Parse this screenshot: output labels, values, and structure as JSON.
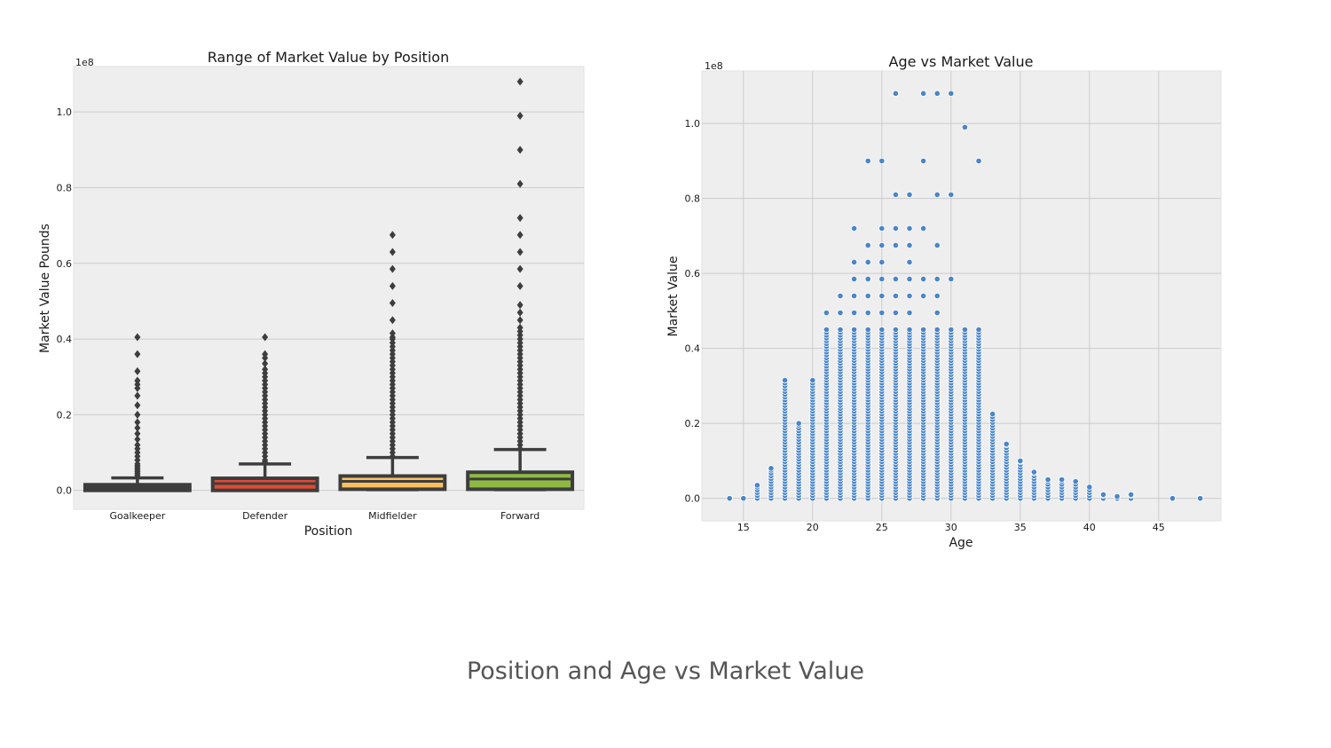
{
  "caption": "Position and Age vs Market Value",
  "chart_data": [
    {
      "type": "box",
      "title": "Range of Market Value by Position",
      "xlabel": "Position",
      "ylabel": "Market Value Pounds",
      "y_multiplier_label": "1e8",
      "ylim": [
        -0.05,
        1.12
      ],
      "yticks": [
        0.0,
        0.2,
        0.4,
        0.6,
        0.8,
        1.0
      ],
      "ytick_labels": [
        "0.0",
        "0.2",
        "0.4",
        "0.6",
        "0.8",
        "1.0"
      ],
      "grid": true,
      "categories": [
        "Goalkeeper",
        "Defender",
        "Midfielder",
        "Forward"
      ],
      "colors": [
        "#3d3d3d",
        "#e24a33",
        "#fbc15e",
        "#8eba42"
      ],
      "boxes": [
        {
          "name": "Goalkeeper",
          "whisker_low": 0.0,
          "q1": 0.0,
          "median": 0.0,
          "q3": 0.015,
          "whisker_high": 0.033,
          "outliers": [
            0.035,
            0.04,
            0.045,
            0.05,
            0.055,
            0.06,
            0.065,
            0.07,
            0.08,
            0.09,
            0.1,
            0.11,
            0.12,
            0.135,
            0.15,
            0.165,
            0.18,
            0.2,
            0.225,
            0.25,
            0.27,
            0.28,
            0.29,
            0.315,
            0.36,
            0.405
          ]
        },
        {
          "name": "Defender",
          "whisker_low": 0.0,
          "q1": 0.0,
          "median": 0.018,
          "q3": 0.032,
          "whisker_high": 0.07,
          "outliers": [
            0.075,
            0.08,
            0.09,
            0.1,
            0.11,
            0.12,
            0.13,
            0.14,
            0.15,
            0.16,
            0.17,
            0.18,
            0.19,
            0.2,
            0.21,
            0.22,
            0.23,
            0.24,
            0.25,
            0.26,
            0.27,
            0.28,
            0.29,
            0.3,
            0.31,
            0.32,
            0.335,
            0.35,
            0.36,
            0.405
          ]
        },
        {
          "name": "Midfielder",
          "whisker_low": 0.0,
          "q1": 0.003,
          "median": 0.024,
          "q3": 0.038,
          "whisker_high": 0.087,
          "outliers": [
            0.09,
            0.1,
            0.11,
            0.12,
            0.13,
            0.14,
            0.15,
            0.16,
            0.17,
            0.18,
            0.19,
            0.2,
            0.21,
            0.22,
            0.23,
            0.24,
            0.25,
            0.26,
            0.27,
            0.28,
            0.29,
            0.3,
            0.31,
            0.32,
            0.33,
            0.34,
            0.35,
            0.36,
            0.37,
            0.38,
            0.39,
            0.4,
            0.405,
            0.415,
            0.45,
            0.495,
            0.54,
            0.585,
            0.63,
            0.675
          ]
        },
        {
          "name": "Forward",
          "whisker_low": 0.0,
          "q1": 0.003,
          "median": 0.03,
          "q3": 0.048,
          "whisker_high": 0.108,
          "outliers": [
            0.11,
            0.12,
            0.13,
            0.14,
            0.15,
            0.16,
            0.17,
            0.18,
            0.19,
            0.2,
            0.21,
            0.22,
            0.23,
            0.24,
            0.25,
            0.26,
            0.27,
            0.28,
            0.29,
            0.3,
            0.31,
            0.32,
            0.33,
            0.34,
            0.35,
            0.36,
            0.37,
            0.38,
            0.39,
            0.4,
            0.41,
            0.42,
            0.43,
            0.45,
            0.47,
            0.49,
            0.54,
            0.585,
            0.63,
            0.675,
            0.72,
            0.81,
            0.9,
            0.99,
            1.08
          ]
        }
      ]
    },
    {
      "type": "scatter",
      "title": "Age vs Market Value",
      "xlabel": "Age",
      "ylabel": "Market Value",
      "y_multiplier_label": "1e8",
      "xlim": [
        12,
        49.5
      ],
      "ylim": [
        -0.06,
        1.14
      ],
      "xticks": [
        15,
        20,
        25,
        30,
        35,
        40,
        45
      ],
      "yticks": [
        0.0,
        0.2,
        0.4,
        0.6,
        0.8,
        1.0
      ],
      "ytick_labels": [
        "0.0",
        "0.2",
        "0.4",
        "0.6",
        "0.8",
        "1.0"
      ],
      "grid": true,
      "color": "#4a86c8",
      "age_max_values": [
        [
          14,
          0.0
        ],
        [
          15,
          0.0
        ],
        [
          16,
          0.035
        ],
        [
          17,
          0.08
        ],
        [
          18,
          0.315
        ],
        [
          19,
          0.2
        ],
        [
          20,
          0.315
        ],
        [
          21,
          0.495
        ],
        [
          22,
          0.54
        ],
        [
          23,
          0.72
        ],
        [
          24,
          0.9
        ],
        [
          25,
          0.9
        ],
        [
          26,
          1.08
        ],
        [
          27,
          0.81
        ],
        [
          28,
          1.08
        ],
        [
          29,
          1.08
        ],
        [
          30,
          1.08
        ],
        [
          31,
          0.99
        ],
        [
          32,
          0.9
        ],
        [
          33,
          0.225
        ],
        [
          34,
          0.145
        ],
        [
          35,
          0.1
        ],
        [
          36,
          0.07
        ],
        [
          37,
          0.05
        ],
        [
          38,
          0.05
        ],
        [
          39,
          0.045
        ],
        [
          40,
          0.03
        ],
        [
          41,
          0.01
        ],
        [
          42,
          0.005
        ],
        [
          43,
          0.01
        ],
        [
          46,
          0.0
        ],
        [
          48,
          0.0
        ]
      ],
      "high_points": [
        [
          24,
          0.9
        ],
        [
          25,
          0.9
        ],
        [
          26,
          1.08
        ],
        [
          28,
          1.08
        ],
        [
          29,
          1.08
        ],
        [
          30,
          1.08
        ],
        [
          31,
          0.99
        ],
        [
          32,
          0.9
        ],
        [
          28,
          0.9
        ],
        [
          26,
          0.81
        ],
        [
          27,
          0.81
        ],
        [
          29,
          0.81
        ],
        [
          30,
          0.81
        ],
        [
          23,
          0.72
        ],
        [
          25,
          0.72
        ],
        [
          26,
          0.72
        ],
        [
          27,
          0.72
        ],
        [
          28,
          0.72
        ],
        [
          24,
          0.675
        ],
        [
          25,
          0.675
        ],
        [
          26,
          0.675
        ],
        [
          27,
          0.675
        ],
        [
          29,
          0.675
        ],
        [
          23,
          0.63
        ],
        [
          24,
          0.63
        ],
        [
          25,
          0.63
        ],
        [
          27,
          0.63
        ],
        [
          23,
          0.585
        ],
        [
          24,
          0.585
        ],
        [
          25,
          0.585
        ],
        [
          26,
          0.585
        ],
        [
          27,
          0.585
        ],
        [
          28,
          0.585
        ],
        [
          29,
          0.585
        ],
        [
          30,
          0.585
        ],
        [
          22,
          0.54
        ],
        [
          23,
          0.54
        ],
        [
          24,
          0.54
        ],
        [
          25,
          0.54
        ],
        [
          26,
          0.54
        ],
        [
          27,
          0.54
        ],
        [
          28,
          0.54
        ],
        [
          29,
          0.54
        ],
        [
          21,
          0.495
        ],
        [
          22,
          0.495
        ],
        [
          23,
          0.495
        ],
        [
          24,
          0.495
        ],
        [
          25,
          0.495
        ],
        [
          26,
          0.495
        ],
        [
          27,
          0.495
        ],
        [
          29,
          0.495
        ]
      ]
    }
  ]
}
